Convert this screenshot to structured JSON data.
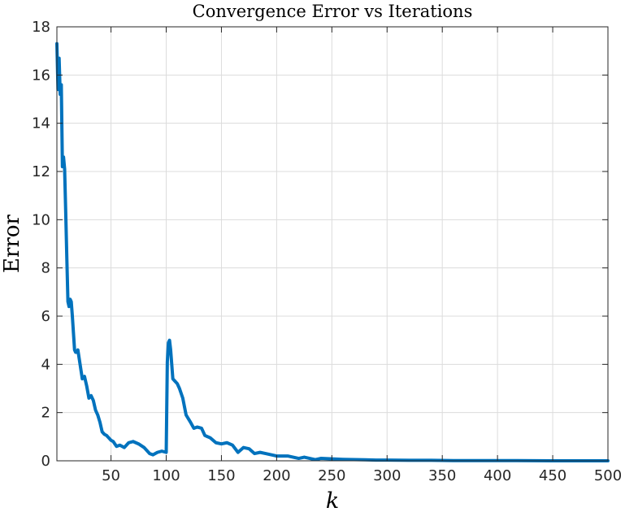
{
  "chart_data": {
    "type": "line",
    "title": "Convergence Error vs Iterations",
    "xlabel": "k",
    "ylabel": "Error",
    "xlim": [
      1,
      500
    ],
    "ylim": [
      0,
      18
    ],
    "xticks": [
      50,
      100,
      150,
      200,
      250,
      300,
      350,
      400,
      450,
      500
    ],
    "xtick_labels": [
      "50",
      "100",
      "150",
      "200",
      "250",
      "300",
      "350",
      "400",
      "450",
      "500"
    ],
    "yticks": [
      0,
      2,
      4,
      6,
      8,
      10,
      12,
      14,
      16,
      18
    ],
    "ytick_labels": [
      "0",
      "2",
      "4",
      "6",
      "8",
      "10",
      "12",
      "14",
      "16",
      "18"
    ],
    "grid": true,
    "line_color": "#0072BD",
    "series": [
      {
        "x": [
          1,
          2,
          3,
          4,
          5,
          6,
          7,
          8,
          9,
          10,
          11,
          12,
          13,
          14,
          15,
          16,
          17,
          18,
          19,
          20,
          22,
          24,
          26,
          28,
          30,
          32,
          34,
          36,
          38,
          40,
          42,
          44,
          46,
          48,
          50,
          52,
          55,
          58,
          62,
          66,
          70,
          75,
          80,
          85,
          88,
          92,
          96,
          100,
          101,
          102,
          103,
          104,
          105,
          106,
          108,
          110,
          112,
          115,
          118,
          122,
          125,
          128,
          132,
          135,
          140,
          145,
          150,
          155,
          160,
          165,
          170,
          175,
          180,
          185,
          190,
          195,
          200,
          205,
          210,
          215,
          220,
          225,
          230,
          235,
          240,
          250,
          260,
          270,
          280,
          290,
          300,
          320,
          340,
          360,
          380,
          400,
          450,
          500
        ],
        "y": [
          17.3,
          15.4,
          16.7,
          15.2,
          15.6,
          12.2,
          12.6,
          12.1,
          10.3,
          8.4,
          6.6,
          6.4,
          6.7,
          6.6,
          6.0,
          5.3,
          4.6,
          4.5,
          4.5,
          4.6,
          4.0,
          3.4,
          3.5,
          3.1,
          2.6,
          2.7,
          2.5,
          2.1,
          1.9,
          1.6,
          1.2,
          1.1,
          1.05,
          0.95,
          0.85,
          0.8,
          0.6,
          0.65,
          0.55,
          0.75,
          0.8,
          0.7,
          0.55,
          0.3,
          0.25,
          0.35,
          0.4,
          0.35,
          4.1,
          4.9,
          5.0,
          4.6,
          4.0,
          3.4,
          3.3,
          3.2,
          3.0,
          2.6,
          1.9,
          1.6,
          1.35,
          1.4,
          1.35,
          1.05,
          0.95,
          0.75,
          0.7,
          0.75,
          0.65,
          0.35,
          0.55,
          0.5,
          0.3,
          0.35,
          0.3,
          0.25,
          0.2,
          0.2,
          0.2,
          0.15,
          0.1,
          0.15,
          0.1,
          0.05,
          0.1,
          0.08,
          0.06,
          0.05,
          0.04,
          0.03,
          0.03,
          0.02,
          0.02,
          0.01,
          0.01,
          0.01,
          0.0,
          0.0
        ]
      }
    ]
  }
}
